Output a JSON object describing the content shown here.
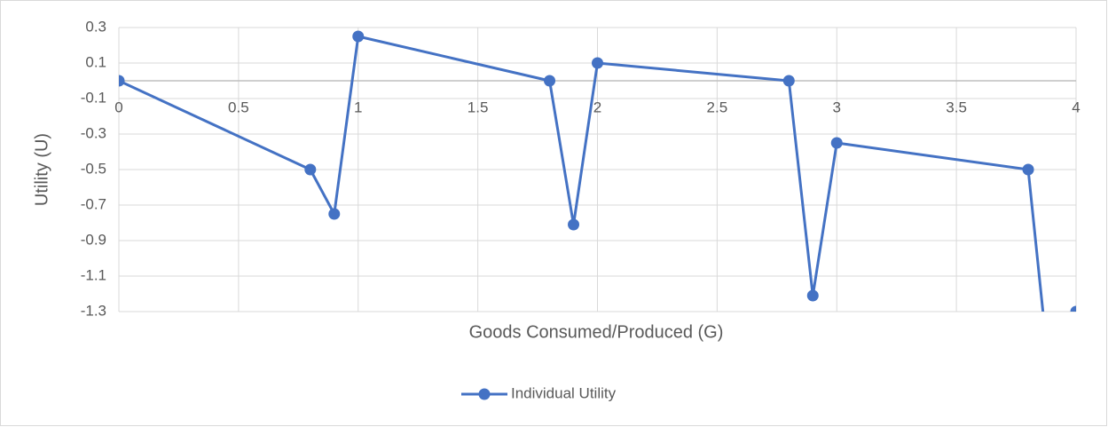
{
  "chart_data": {
    "type": "line",
    "x_label": "Goods Consumed/Produced (G)",
    "y_label": "Utility (U)",
    "series": [
      {
        "name": "Individual Utility",
        "color": "#4472c4",
        "x": [
          0,
          0.8,
          0.9,
          1,
          1.8,
          1.9,
          2,
          2.8,
          2.9,
          3,
          3.8,
          3.9,
          4
        ],
        "values": [
          0,
          -0.5,
          -0.75,
          0.25,
          0,
          -0.81,
          0.1,
          0,
          -1.21,
          -0.35,
          -0.5,
          -1.8,
          -1.3
        ]
      }
    ],
    "xlim": [
      0,
      4
    ],
    "xticks": [
      0,
      0.5,
      1,
      1.5,
      2,
      2.5,
      3,
      3.5,
      4
    ],
    "ylim": [
      -1.3,
      0.3
    ],
    "yticks": [
      0.3,
      0.1,
      -0.1,
      -0.3,
      -0.5,
      -0.7,
      -0.9,
      -1.1,
      -1.3
    ],
    "grid": true,
    "legend": "bottom"
  }
}
